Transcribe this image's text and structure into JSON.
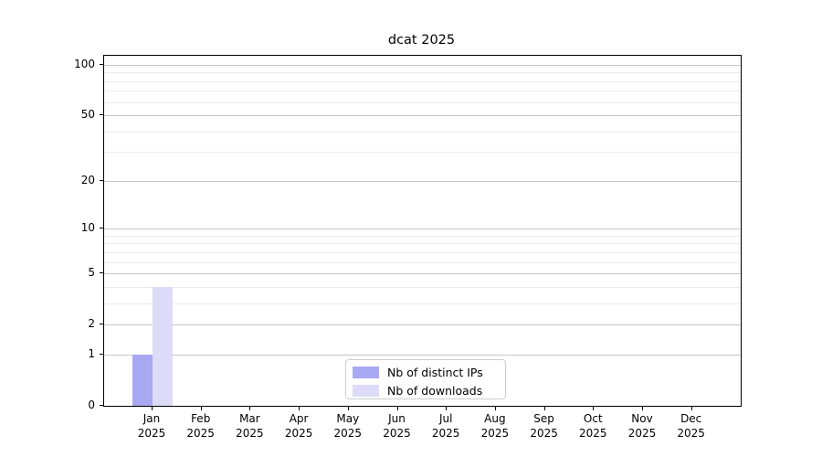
{
  "chart_data": {
    "type": "bar",
    "title": "dcat 2025",
    "categories": [
      "Jan",
      "Feb",
      "Mar",
      "Apr",
      "May",
      "Jun",
      "Jul",
      "Aug",
      "Sep",
      "Oct",
      "Nov",
      "Dec"
    ],
    "category_year": "2025",
    "series": [
      {
        "name": "Nb of distinct IPs",
        "color": "#a8a8f3",
        "values": [
          1,
          0,
          0,
          0,
          0,
          0,
          0,
          0,
          0,
          0,
          0,
          0
        ]
      },
      {
        "name": "Nb of downloads",
        "color": "#dcdcf8",
        "values": [
          4,
          0,
          0,
          0,
          0,
          0,
          0,
          0,
          0,
          0,
          0,
          0
        ]
      }
    ],
    "xlabel": "",
    "ylabel": "",
    "yscale": "log1p",
    "ylim": [
      0,
      113
    ],
    "y_major_ticks": [
      0,
      1,
      2,
      5,
      10,
      20,
      50,
      100
    ],
    "y_minor_gridlines": [
      3,
      4,
      6,
      7,
      8,
      9,
      30,
      40,
      60,
      70,
      80,
      90
    ],
    "grid": "horizontal",
    "legend_position": "lower-center-inside",
    "colors": {
      "axis": "#000000",
      "text": "#000000",
      "major_grid": "#c6c6c6",
      "minor_grid": "#ececec",
      "background": "#ffffff"
    }
  }
}
